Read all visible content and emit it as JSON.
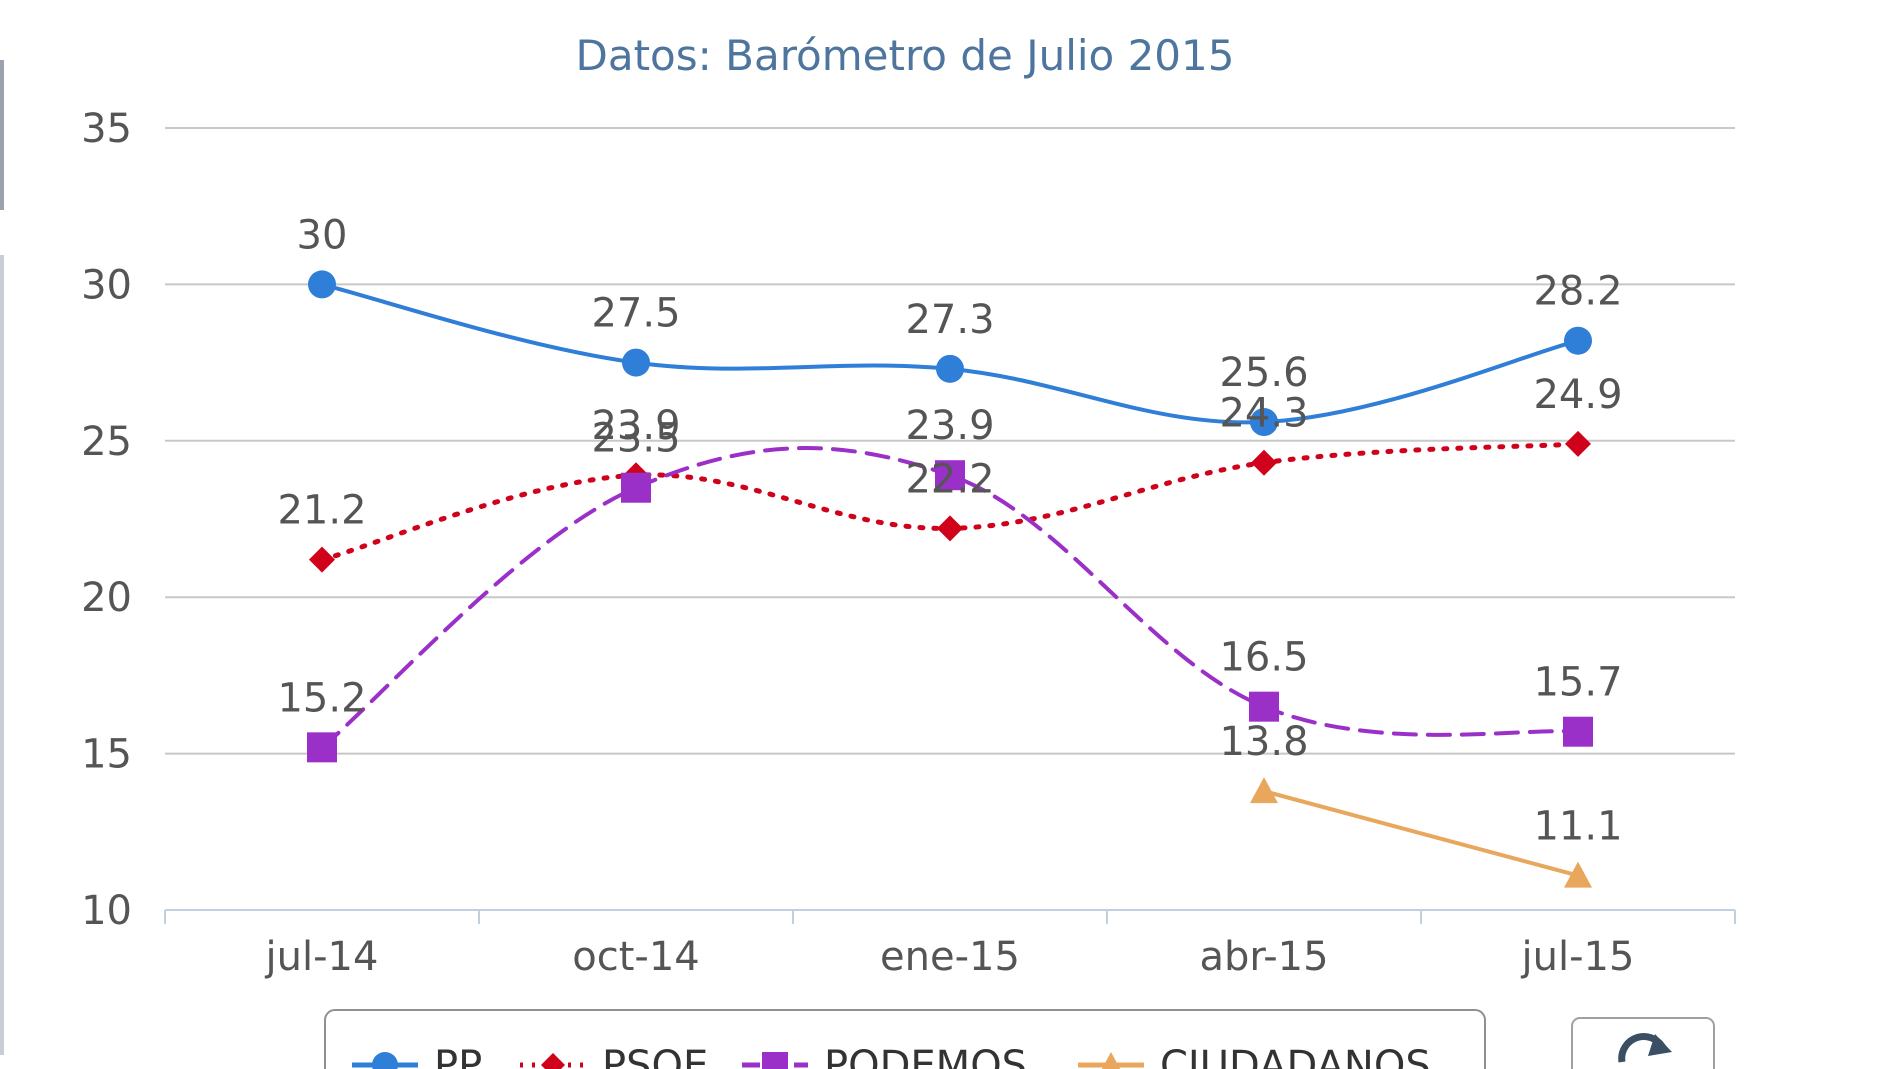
{
  "chart_data": {
    "type": "line",
    "subtitle": "Datos: Barómetro de Julio 2015",
    "categories": [
      "jul-14",
      "oct-14",
      "ene-15",
      "abr-15",
      "jul-15"
    ],
    "ylim": [
      10,
      35
    ],
    "yticks": [
      10,
      15,
      20,
      25,
      30,
      35
    ],
    "grid": true,
    "legend_position": "bottom",
    "series": [
      {
        "name": "PP",
        "color": "#2f7ed8",
        "marker": "circle",
        "dash": "solid",
        "values": [
          30,
          27.5,
          27.3,
          25.6,
          28.2
        ]
      },
      {
        "name": "PSOE",
        "color": "#d0021b",
        "marker": "diamond",
        "dash": "dotted",
        "values": [
          21.2,
          23.9,
          22.2,
          24.3,
          24.9
        ]
      },
      {
        "name": "PODEMOS",
        "color": "#9b30c8",
        "marker": "square",
        "dash": "dashed",
        "values": [
          15.2,
          23.5,
          23.9,
          16.5,
          15.7
        ]
      },
      {
        "name": "CIUDADANOS",
        "color": "#e8a75c",
        "marker": "triangle",
        "dash": "solid",
        "values": [
          null,
          null,
          null,
          13.8,
          11.1
        ]
      }
    ]
  },
  "ui": {
    "reset_icon": "refresh-icon"
  }
}
